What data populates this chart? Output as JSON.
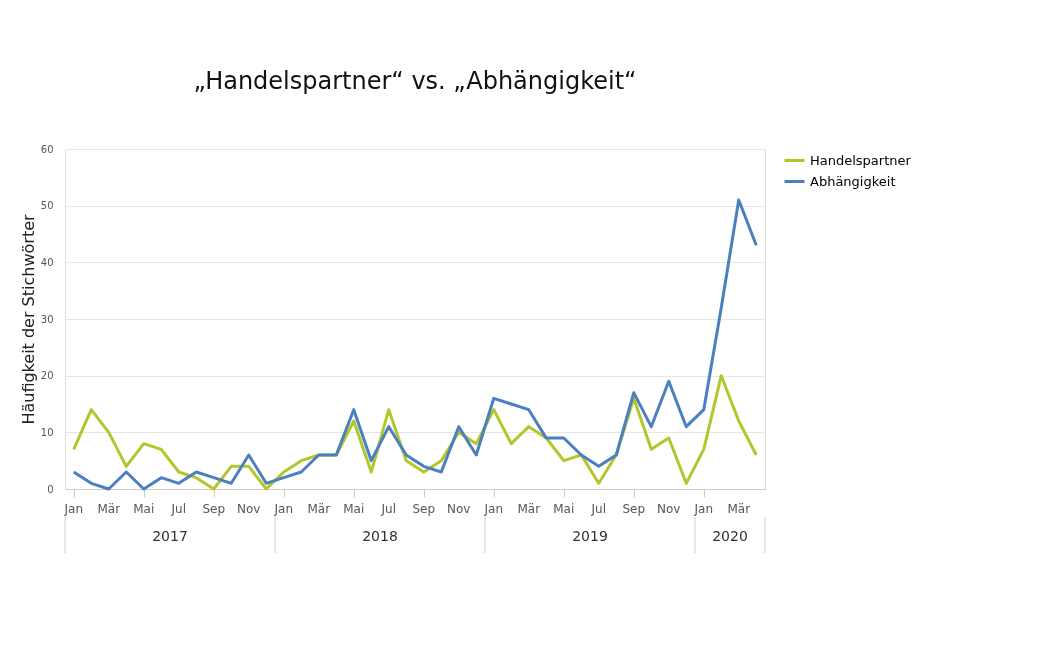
{
  "chart_data": {
    "type": "line",
    "title": "„Handelspartner“ vs. „Abhängigkeit“",
    "ylabel": "Häufigkeit der Stichwörter",
    "categories": [
      "Jan",
      null,
      "Mär",
      null,
      "Mai",
      null,
      "Jul",
      null,
      "Sep",
      null,
      "Nov",
      null,
      "Jan",
      null,
      "Mär",
      null,
      "Mai",
      null,
      "Jul",
      null,
      "Sep",
      null,
      "Nov",
      null,
      "Jan",
      null,
      "Mär",
      null,
      "Mai",
      null,
      "Jul",
      null,
      "Sep",
      null,
      "Nov",
      null,
      "Jan",
      null,
      "Mär",
      null
    ],
    "series": [
      {
        "name": "Handelspartner",
        "color": "#b3c62b",
        "values": [
          7,
          14,
          10,
          4,
          8,
          7,
          3,
          2,
          0,
          4,
          4,
          0,
          3,
          5,
          6,
          6,
          12,
          3,
          14,
          5,
          3,
          5,
          10,
          8,
          14,
          8,
          11,
          9,
          5,
          6,
          1,
          6,
          16,
          7,
          9,
          1,
          7,
          20,
          12,
          6
        ]
      },
      {
        "name": "Abhängigkeit",
        "color": "#4a7fc0",
        "values": [
          3,
          1,
          0,
          3,
          0,
          2,
          1,
          3,
          2,
          1,
          6,
          1,
          2,
          3,
          6,
          6,
          14,
          5,
          11,
          6,
          4,
          3,
          11,
          6,
          16,
          15,
          14,
          9,
          9,
          6,
          4,
          6,
          17,
          11,
          19,
          11,
          14,
          32,
          51,
          43
        ]
      }
    ],
    "annotations": [
      "2017",
      "2018",
      "2019",
      "2020"
    ],
    "ylim": [
      0,
      60
    ],
    "yticks": [
      0,
      10,
      20,
      30,
      40,
      50,
      60
    ],
    "grid": "y",
    "legend": "right",
    "marker": "none",
    "line_style": "solid"
  }
}
